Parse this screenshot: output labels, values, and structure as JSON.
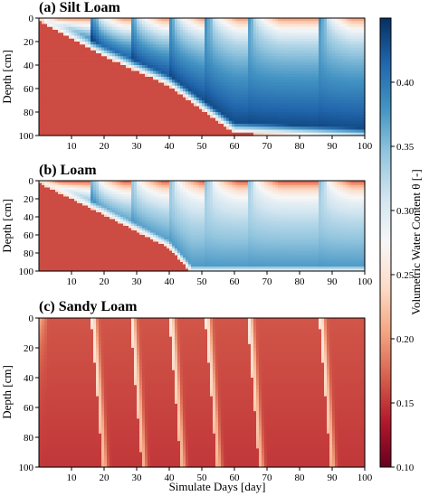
{
  "chart_data": {
    "type": "heatmap",
    "xlabel": "Simulate Days [day]",
    "colorbar": {
      "label": "Volumetric Water Content θ [-]",
      "range": [
        0.1,
        0.45
      ],
      "ticks": [
        "0.10",
        "0.15",
        "0.20",
        "0.25",
        "0.30",
        "0.35",
        "0.40"
      ],
      "colormap": "RdBu",
      "colors": [
        "#67001f",
        "#b2182b",
        "#d6604d",
        "#f4a582",
        "#fddbc7",
        "#f7f7f7",
        "#d1e5f0",
        "#92c5de",
        "#4393c3",
        "#2166ac",
        "#053061"
      ]
    },
    "x_ticks": [
      "10",
      "20",
      "30",
      "40",
      "50",
      "60",
      "70",
      "80",
      "90",
      "100"
    ],
    "y_ticks": [
      "0",
      "20",
      "40",
      "60",
      "80",
      "100"
    ],
    "xlim": [
      0,
      100
    ],
    "ylim": [
      100,
      0
    ],
    "panels": [
      {
        "title": "(a) Silt Loam",
        "ylabel": "Depth [cm]",
        "dry_theta": 0.16,
        "wet_theta": 0.44,
        "wetting_front_depth": [
          [
            0,
            0
          ],
          [
            20,
            30
          ],
          [
            40,
            55
          ],
          [
            50,
            75
          ],
          [
            60,
            95
          ],
          [
            100,
            100
          ]
        ],
        "irrigation_days": [
          16,
          28,
          40,
          51,
          64,
          86
        ]
      },
      {
        "title": "(b) Loam",
        "ylabel": "Depth [cm]",
        "dry_theta": 0.16,
        "wet_theta": 0.38,
        "wetting_front_depth": [
          [
            0,
            0
          ],
          [
            20,
            35
          ],
          [
            40,
            72
          ],
          [
            47,
            100
          ],
          [
            100,
            100
          ]
        ],
        "irrigation_days": [
          16,
          28,
          40,
          51,
          64,
          86
        ]
      },
      {
        "title": "(c) Sandy Loam",
        "ylabel": "Depth [cm]",
        "dry_theta": 0.15,
        "wet_theta": 0.22,
        "irrigation_days": [
          16,
          28,
          40,
          51,
          64,
          86
        ]
      }
    ]
  }
}
